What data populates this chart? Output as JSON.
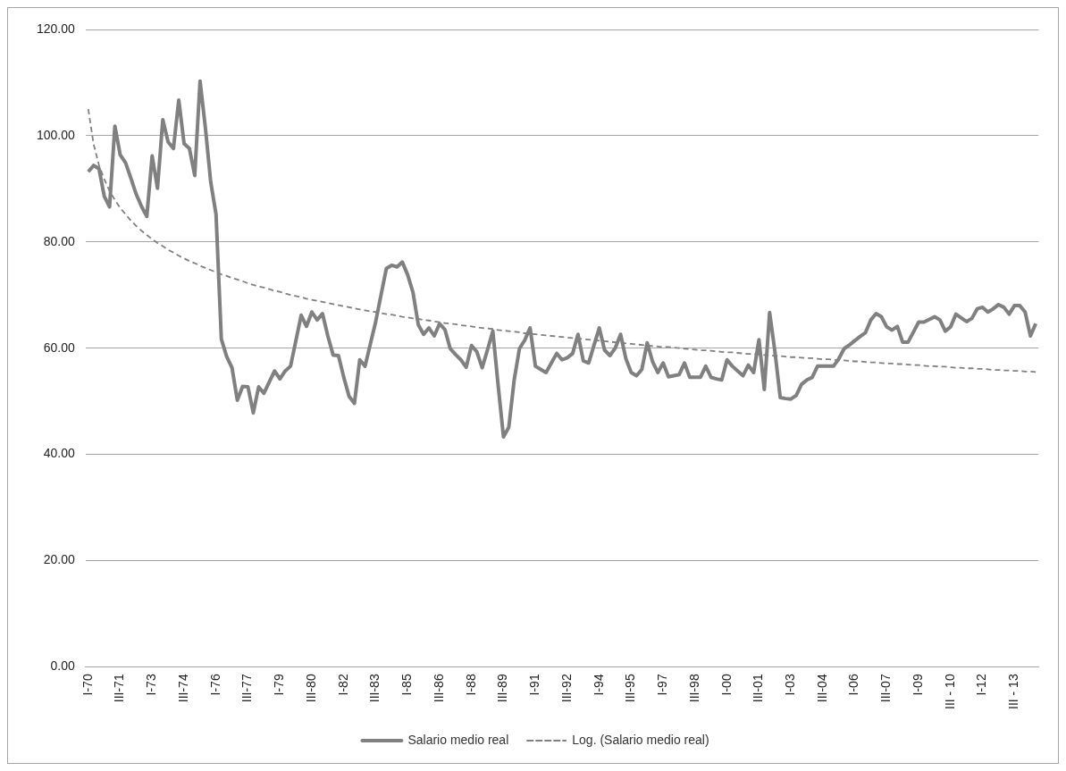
{
  "chart_data": {
    "type": "line",
    "categories": [
      "I-70",
      null,
      null,
      null,
      null,
      null,
      "III-71",
      null,
      null,
      null,
      null,
      null,
      "I-73",
      null,
      null,
      null,
      null,
      null,
      "III-74",
      null,
      null,
      null,
      null,
      null,
      "I-76",
      null,
      null,
      null,
      null,
      null,
      "III-77",
      null,
      null,
      null,
      null,
      null,
      "I-79",
      null,
      null,
      null,
      null,
      null,
      "III-80",
      null,
      null,
      null,
      null,
      null,
      "I-82",
      null,
      null,
      null,
      null,
      null,
      "III-83",
      null,
      null,
      null,
      null,
      null,
      "I-85",
      null,
      null,
      null,
      null,
      null,
      "III-86",
      null,
      null,
      null,
      null,
      null,
      "I-88",
      null,
      null,
      null,
      null,
      null,
      "III-89",
      null,
      null,
      null,
      null,
      null,
      "I-91",
      null,
      null,
      null,
      null,
      null,
      "III-92",
      null,
      null,
      null,
      null,
      null,
      "I-94",
      null,
      null,
      null,
      null,
      null,
      "III-95",
      null,
      null,
      null,
      null,
      null,
      "I-97",
      null,
      null,
      null,
      null,
      null,
      "III-98",
      null,
      null,
      null,
      null,
      null,
      "I-00",
      null,
      null,
      null,
      null,
      null,
      "III-01",
      null,
      null,
      null,
      null,
      null,
      "I-03",
      null,
      null,
      null,
      null,
      null,
      "III-04",
      null,
      null,
      null,
      null,
      null,
      "I-06",
      null,
      null,
      null,
      null,
      null,
      "III-07",
      null,
      null,
      null,
      null,
      null,
      "I-09",
      null,
      null,
      null,
      null,
      null,
      "III - 10",
      null,
      null,
      null,
      null,
      null,
      "I-12",
      null,
      null,
      null,
      null,
      null,
      "III - 13",
      null,
      null,
      null,
      null
    ],
    "series": [
      {
        "name": "Salario medio real",
        "color": "#808080",
        "line_style": "solid",
        "values": [
          93.2,
          94.4,
          93.8,
          88.6,
          86.6,
          101.8,
          96.4,
          94.9,
          92.0,
          89.0,
          86.7,
          84.8,
          96.2,
          90.1,
          103.0,
          98.8,
          97.6,
          106.7,
          98.5,
          97.6,
          92.5,
          110.3,
          101.5,
          91.3,
          85.2,
          61.7,
          58.4,
          56.3,
          50.2,
          52.8,
          52.7,
          47.8,
          52.7,
          51.5,
          53.6,
          55.7,
          54.2,
          55.7,
          56.6,
          61.4,
          66.2,
          64.1,
          66.8,
          65.3,
          66.5,
          62.3,
          58.7,
          58.6,
          54.5,
          50.9,
          49.6,
          57.8,
          56.6,
          60.8,
          65.0,
          70.0,
          75.0,
          75.6,
          75.3,
          76.2,
          73.8,
          70.5,
          64.4,
          62.6,
          63.8,
          62.3,
          64.6,
          63.5,
          59.9,
          58.8,
          57.8,
          56.4,
          60.5,
          59.3,
          56.3,
          59.7,
          63.2,
          53.0,
          43.3,
          45.1,
          53.9,
          59.9,
          61.5,
          63.8,
          56.6,
          56.0,
          55.4,
          57.2,
          59.0,
          57.8,
          58.2,
          59.0,
          62.6,
          57.6,
          57.2,
          60.5,
          63.8,
          59.6,
          58.6,
          60.0,
          62.6,
          58.0,
          55.4,
          54.8,
          56.0,
          61.0,
          57.5,
          55.4,
          57.2,
          54.6,
          54.8,
          55.0,
          57.2,
          54.5,
          54.5,
          54.5,
          56.6,
          54.5,
          54.2,
          54.0,
          57.8,
          56.6,
          55.7,
          54.8,
          56.8,
          55.4,
          61.6,
          52.2,
          66.7,
          59.3,
          50.7,
          50.5,
          50.4,
          51.1,
          53.2,
          54.0,
          54.5,
          56.6,
          56.6,
          56.6,
          56.6,
          58.0,
          59.9,
          60.6,
          61.4,
          62.2,
          62.9,
          65.3,
          66.5,
          65.9,
          64.0,
          63.4,
          64.1,
          61.1,
          61.1,
          63.0,
          64.9,
          64.9,
          65.4,
          65.9,
          65.3,
          63.2,
          64.0,
          66.4,
          65.7,
          65.0,
          65.6,
          67.4,
          67.7,
          66.8,
          67.4,
          68.2,
          67.7,
          66.4,
          68.0,
          68.0,
          66.8,
          62.3,
          64.6
        ]
      },
      {
        "name": "Log. (Salario medio real)",
        "color": "#808080",
        "line_style": "dashed",
        "values": [
          105.0,
          98.4,
          94.5,
          91.8,
          89.6,
          87.9,
          86.4,
          85.2,
          84.0,
          83.0,
          82.1,
          81.3,
          80.5,
          79.8,
          79.2,
          78.5,
          78.0,
          77.4,
          76.9,
          76.4,
          76.0,
          75.5,
          75.1,
          74.7,
          74.3,
          73.9,
          73.6,
          73.2,
          72.9,
          72.6,
          72.2,
          71.9,
          71.6,
          71.4,
          71.1,
          70.8,
          70.6,
          70.3,
          70.0,
          69.8,
          69.6,
          69.3,
          69.1,
          68.9,
          68.7,
          68.5,
          68.3,
          68.1,
          67.9,
          67.7,
          67.5,
          67.3,
          67.1,
          66.9,
          66.8,
          66.6,
          66.4,
          66.3,
          66.1,
          65.9,
          65.8,
          65.6,
          65.5,
          65.3,
          65.2,
          65.0,
          64.9,
          64.7,
          64.6,
          64.5,
          64.3,
          64.2,
          64.1,
          63.9,
          63.8,
          63.7,
          63.6,
          63.4,
          63.3,
          63.2,
          63.1,
          63.0,
          62.8,
          62.7,
          62.6,
          62.5,
          62.4,
          62.3,
          62.2,
          62.1,
          62.0,
          61.9,
          61.8,
          61.7,
          61.6,
          61.5,
          61.4,
          61.3,
          61.2,
          61.1,
          61.0,
          60.9,
          60.8,
          60.7,
          60.6,
          60.5,
          60.4,
          60.3,
          60.2,
          60.2,
          60.1,
          60.0,
          59.9,
          59.8,
          59.7,
          59.6,
          59.6,
          59.5,
          59.4,
          59.3,
          59.2,
          59.2,
          59.1,
          59.0,
          58.9,
          58.9,
          58.8,
          58.7,
          58.6,
          58.6,
          58.5,
          58.4,
          58.3,
          58.3,
          58.2,
          58.1,
          58.1,
          58.0,
          57.9,
          57.9,
          57.8,
          57.7,
          57.7,
          57.6,
          57.5,
          57.5,
          57.4,
          57.3,
          57.3,
          57.2,
          57.1,
          57.1,
          57.0,
          57.0,
          56.9,
          56.8,
          56.8,
          56.7,
          56.6,
          56.6,
          56.5,
          56.5,
          56.4,
          56.3,
          56.3,
          56.2,
          56.2,
          56.1,
          56.1,
          56.0,
          55.9,
          55.9,
          55.8,
          55.8,
          55.7,
          55.7,
          55.6,
          55.6,
          55.5
        ]
      }
    ],
    "ylim": [
      0,
      120
    ],
    "yticks": [
      {
        "value": 0,
        "label": "0.00"
      },
      {
        "value": 20,
        "label": "20.00"
      },
      {
        "value": 40,
        "label": "40.00"
      },
      {
        "value": 60,
        "label": "60.00"
      },
      {
        "value": 80,
        "label": "80.00"
      },
      {
        "value": 100,
        "label": "100.00"
      },
      {
        "value": 120,
        "label": "120.00"
      }
    ],
    "grid": "y",
    "legend": "bottom",
    "marker": "none"
  }
}
